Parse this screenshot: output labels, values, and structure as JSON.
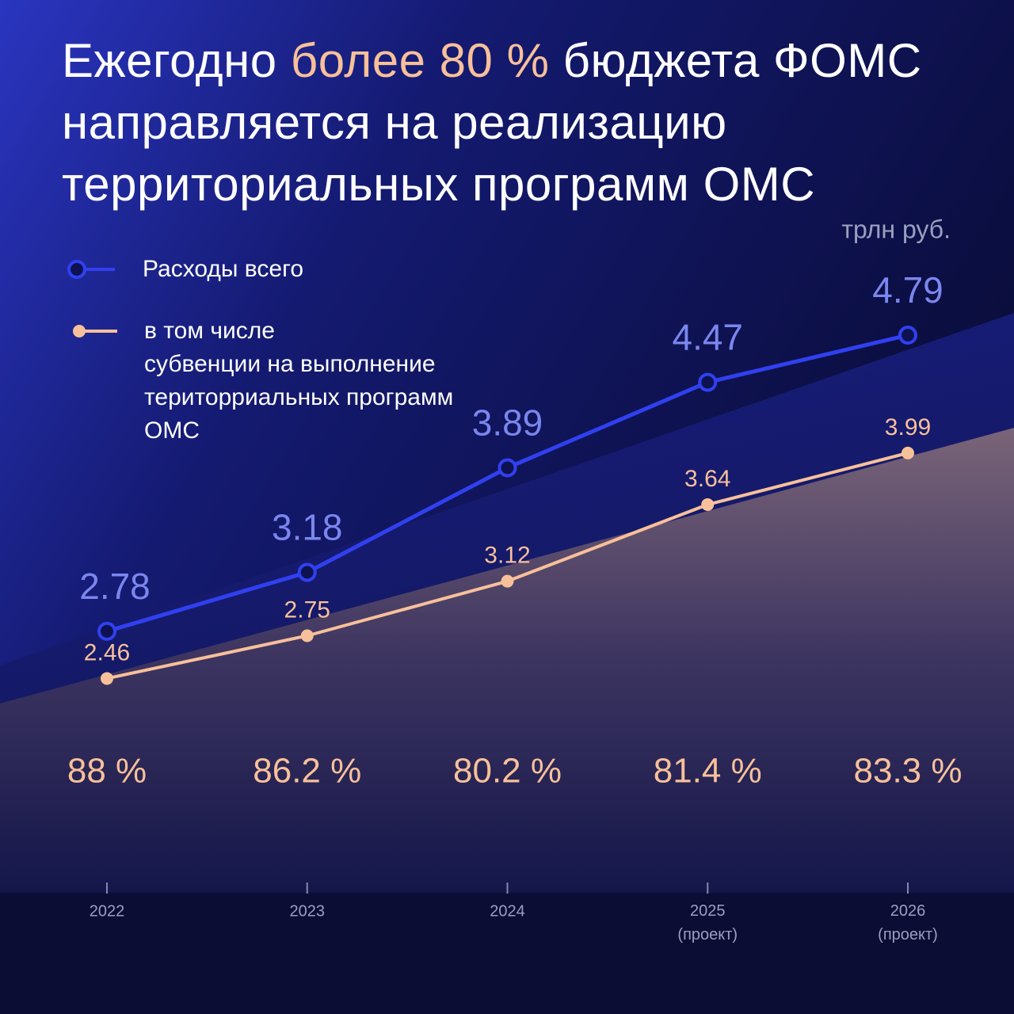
{
  "chart_data": {
    "type": "line",
    "title": [
      "Ежегодно",
      "более 80 %",
      "бюджета ФОМС направляется на реализацию территориальных программ ОМС"
    ],
    "unit": "трлн руб.",
    "categories": [
      "2022",
      "2023",
      "2024",
      "2025 (проект)",
      "2026 (проект)"
    ],
    "ylim": [
      2,
      5
    ],
    "legend_note": "в том числе",
    "series": [
      {
        "name": "Расходы всего",
        "color": "#3040f0",
        "label_color": "#7b86ee",
        "values": [
          2.78,
          3.18,
          3.89,
          4.47,
          4.79
        ]
      },
      {
        "name": "субвенции на выполнение територриальных программ ОМС",
        "color": "#f8c09a",
        "label_color": "#f8c09a",
        "values": [
          2.46,
          2.75,
          3.12,
          3.64,
          3.99
        ]
      }
    ],
    "shares": {
      "values": [
        88,
        86.2,
        80.2,
        81.4,
        83.3
      ],
      "value_labels": [
        "88 %",
        "86.2 %",
        "80.2 %",
        "81.4 %",
        "83.3 %"
      ],
      "color": "#f8c09a"
    }
  }
}
